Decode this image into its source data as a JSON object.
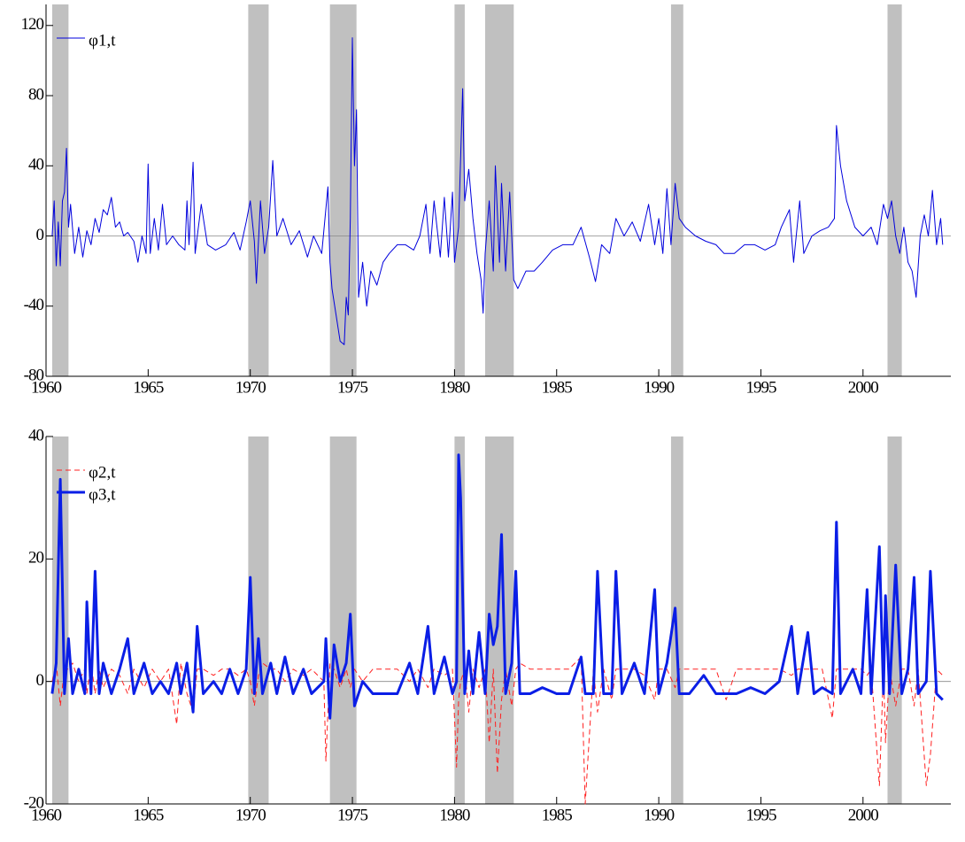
{
  "chart_data": [
    {
      "type": "line",
      "xlim": [
        1960,
        2004.3
      ],
      "xticks": [
        1960,
        1965,
        1970,
        1975,
        1980,
        1985,
        1990,
        1995,
        2000
      ],
      "ylim": [
        -80,
        132
      ],
      "yticks": [
        -80,
        -40,
        0,
        40,
        80,
        120
      ],
      "reference_line": 0,
      "legend": "top-left",
      "shaded_periods": [
        {
          "start": 1960.3,
          "end": 1961.1
        },
        {
          "start": 1969.9,
          "end": 1970.9
        },
        {
          "start": 1973.9,
          "end": 1975.2
        },
        {
          "start": 1980.0,
          "end": 1980.5
        },
        {
          "start": 1981.5,
          "end": 1982.9
        },
        {
          "start": 1990.6,
          "end": 1991.2
        },
        {
          "start": 2001.2,
          "end": 2001.9
        }
      ],
      "x": [
        1960.3,
        1960.4,
        1960.5,
        1960.6,
        1960.7,
        1960.8,
        1960.9,
        1961.0,
        1961.1,
        1961.2,
        1961.4,
        1961.6,
        1961.8,
        1962.0,
        1962.2,
        1962.4,
        1962.6,
        1962.8,
        1963.0,
        1963.2,
        1963.4,
        1963.6,
        1963.8,
        1964.0,
        1964.3,
        1964.5,
        1964.7,
        1964.9,
        1965.0,
        1965.1,
        1965.3,
        1965.5,
        1965.7,
        1965.9,
        1966.2,
        1966.5,
        1966.8,
        1966.9,
        1967.0,
        1967.2,
        1967.3,
        1967.6,
        1967.9,
        1968.3,
        1968.8,
        1969.2,
        1969.5,
        1969.8,
        1970.0,
        1970.2,
        1970.3,
        1970.5,
        1970.7,
        1970.9,
        1971.1,
        1971.3,
        1971.6,
        1972.0,
        1972.4,
        1972.8,
        1973.1,
        1973.5,
        1973.8,
        1973.9,
        1974.0,
        1974.2,
        1974.4,
        1974.6,
        1974.7,
        1974.8,
        1974.9,
        1975.0,
        1975.1,
        1975.2,
        1975.3,
        1975.5,
        1975.7,
        1975.9,
        1976.2,
        1976.5,
        1976.8,
        1977.2,
        1977.6,
        1978.0,
        1978.3,
        1978.6,
        1978.8,
        1979.0,
        1979.3,
        1979.5,
        1979.7,
        1979.9,
        1980.0,
        1980.2,
        1980.4,
        1980.5,
        1980.7,
        1980.9,
        1981.1,
        1981.3,
        1981.4,
        1981.5,
        1981.7,
        1981.9,
        1982.0,
        1982.2,
        1982.3,
        1982.5,
        1982.7,
        1982.9,
        1983.1,
        1983.5,
        1983.9,
        1984.3,
        1984.8,
        1985.3,
        1985.8,
        1986.2,
        1986.6,
        1986.9,
        1987.2,
        1987.6,
        1987.9,
        1988.3,
        1988.7,
        1989.1,
        1989.5,
        1989.8,
        1990.0,
        1990.2,
        1990.4,
        1990.6,
        1990.8,
        1991.0,
        1991.3,
        1991.8,
        1992.3,
        1992.8,
        1993.2,
        1993.7,
        1994.2,
        1994.7,
        1995.2,
        1995.7,
        1996.0,
        1996.4,
        1996.6,
        1996.9,
        1997.1,
        1997.5,
        1997.9,
        1998.3,
        1998.6,
        1998.7,
        1998.9,
        1999.2,
        1999.6,
        2000.0,
        2000.4,
        2000.7,
        2001.0,
        2001.2,
        2001.4,
        2001.6,
        2001.8,
        2002.0,
        2002.2,
        2002.4,
        2002.6,
        2002.8,
        2003.0,
        2003.2,
        2003.4,
        2003.6,
        2003.8,
        2003.9
      ],
      "series": [
        {
          "name": "φ1,t",
          "color": "#0000dd",
          "line_width": 1,
          "line_style": "solid",
          "values": [
            0,
            20,
            -17,
            8,
            -17,
            20,
            25,
            50,
            5,
            18,
            -10,
            5,
            -12,
            3,
            -5,
            10,
            2,
            15,
            12,
            22,
            5,
            8,
            0,
            2,
            -3,
            -15,
            0,
            -10,
            41,
            -10,
            10,
            -8,
            18,
            -5,
            0,
            -5,
            -8,
            20,
            -5,
            42,
            -10,
            18,
            -5,
            -8,
            -5,
            2,
            -8,
            8,
            20,
            -3,
            -27,
            20,
            -10,
            5,
            43,
            0,
            10,
            -5,
            3,
            -12,
            0,
            -10,
            28,
            -15,
            -30,
            -45,
            -60,
            -62,
            -35,
            -45,
            10,
            113,
            40,
            72,
            -35,
            -15,
            -40,
            -20,
            -28,
            -15,
            -10,
            -5,
            -5,
            -8,
            0,
            18,
            -10,
            20,
            -12,
            22,
            -12,
            25,
            -15,
            5,
            84,
            20,
            38,
            10,
            -10,
            -25,
            -44,
            -10,
            20,
            -20,
            40,
            -15,
            30,
            -20,
            25,
            -25,
            -30,
            -20,
            -20,
            -15,
            -8,
            -5,
            -5,
            5,
            -12,
            -26,
            -5,
            -10,
            10,
            0,
            8,
            -3,
            18,
            -5,
            10,
            -10,
            27,
            -5,
            30,
            10,
            5,
            0,
            -3,
            -5,
            -10,
            -10,
            -5,
            -5,
            -8,
            -5,
            5,
            15,
            -15,
            20,
            -10,
            0,
            3,
            5,
            10,
            63,
            40,
            20,
            5,
            0,
            5,
            -5,
            18,
            10,
            20,
            0,
            -10,
            5,
            -15,
            -20,
            -35,
            0,
            12,
            0,
            26,
            -5,
            10,
            -5
          ]
        }
      ]
    },
    {
      "type": "line",
      "xlim": [
        1960,
        2004.3
      ],
      "xticks": [
        1960,
        1965,
        1970,
        1975,
        1980,
        1985,
        1990,
        1995,
        2000
      ],
      "ylim": [
        -20,
        40
      ],
      "yticks": [
        -20,
        0,
        20,
        40
      ],
      "reference_line": 0,
      "legend": "top-left",
      "shaded_periods": [
        {
          "start": 1960.3,
          "end": 1961.1
        },
        {
          "start": 1969.9,
          "end": 1970.9
        },
        {
          "start": 1973.9,
          "end": 1975.2
        },
        {
          "start": 1980.0,
          "end": 1980.5
        },
        {
          "start": 1981.5,
          "end": 1982.9
        },
        {
          "start": 1990.6,
          "end": 1991.2
        },
        {
          "start": 2001.2,
          "end": 2001.9
        }
      ],
      "x": [
        1960.3,
        1960.5,
        1960.7,
        1960.9,
        1961.1,
        1961.3,
        1961.6,
        1961.9,
        1962.0,
        1962.2,
        1962.4,
        1962.6,
        1962.8,
        1963.2,
        1963.6,
        1964.0,
        1964.3,
        1964.8,
        1965.2,
        1965.6,
        1966.0,
        1966.4,
        1966.6,
        1966.9,
        1967.2,
        1967.4,
        1967.7,
        1968.2,
        1968.6,
        1969.0,
        1969.4,
        1969.8,
        1970.0,
        1970.2,
        1970.4,
        1970.6,
        1971.0,
        1971.3,
        1971.7,
        1972.1,
        1972.6,
        1973.0,
        1973.6,
        1973.7,
        1973.9,
        1974.1,
        1974.4,
        1974.7,
        1974.9,
        1975.1,
        1975.5,
        1976.0,
        1976.6,
        1977.2,
        1977.8,
        1978.2,
        1978.7,
        1979.0,
        1979.5,
        1979.9,
        1980.1,
        1980.2,
        1980.3,
        1980.5,
        1980.7,
        1980.9,
        1981.2,
        1981.5,
        1981.7,
        1981.9,
        1982.1,
        1982.3,
        1982.5,
        1982.8,
        1983.0,
        1983.2,
        1983.7,
        1984.3,
        1985.0,
        1985.6,
        1986.2,
        1986.4,
        1986.8,
        1987.0,
        1987.3,
        1987.7,
        1987.9,
        1988.2,
        1988.8,
        1989.3,
        1989.8,
        1990.0,
        1990.4,
        1990.8,
        1991.0,
        1991.5,
        1992.2,
        1992.8,
        1993.3,
        1993.8,
        1994.5,
        1995.2,
        1995.9,
        1996.5,
        1996.8,
        1997.3,
        1997.6,
        1998.0,
        1998.5,
        1998.7,
        1998.9,
        1999.5,
        1999.9,
        2000.2,
        2000.4,
        2000.8,
        2001.0,
        2001.1,
        2001.3,
        2001.6,
        2001.9,
        2002.2,
        2002.5,
        2002.7,
        2003.1,
        2003.3,
        2003.6,
        2003.9
      ],
      "series": [
        {
          "name": "φ2,t",
          "color": "#ff2020",
          "line_width": 1,
          "line_style": "dashed",
          "values": [
            0,
            3,
            -4,
            2,
            2,
            3,
            0,
            2,
            -2,
            3,
            -2,
            2,
            -1,
            2,
            1,
            -2,
            2,
            -1,
            2,
            0,
            2,
            -7,
            3,
            -2,
            -5,
            2,
            2,
            1,
            2,
            2,
            1,
            2,
            0,
            -4,
            1,
            3,
            2,
            2,
            0,
            2,
            1,
            2,
            0,
            -13,
            3,
            2,
            -1,
            2,
            -1,
            2,
            0,
            2,
            2,
            2,
            0,
            2,
            -1,
            2,
            1,
            2,
            -14,
            -3,
            0,
            2,
            -5,
            2,
            -1,
            2,
            -10,
            2,
            -15,
            -3,
            2,
            -4,
            2,
            3,
            2,
            2,
            2,
            2,
            4,
            -20,
            2,
            -5,
            2,
            -3,
            2,
            2,
            2,
            1,
            -3,
            2,
            2,
            -1,
            2,
            2,
            2,
            2,
            -3,
            2,
            2,
            2,
            2,
            1,
            2,
            2,
            2,
            2,
            -6,
            2,
            2,
            2,
            2,
            1,
            2,
            -17,
            2,
            -10,
            2,
            -4,
            2,
            2,
            -4,
            2,
            -17,
            -12,
            2,
            1
          ]
        },
        {
          "name": "φ3,t",
          "color": "#0a1ee6",
          "line_width": 3,
          "line_style": "solid",
          "values": [
            -2,
            3,
            33,
            -2,
            7,
            -2,
            2,
            -2,
            13,
            -2,
            18,
            -2,
            3,
            -2,
            2,
            7,
            -2,
            3,
            -2,
            0,
            -2,
            3,
            -2,
            3,
            -5,
            9,
            -2,
            0,
            -2,
            2,
            -2,
            2,
            17,
            -2,
            7,
            -2,
            3,
            -2,
            4,
            -2,
            2,
            -2,
            0,
            7,
            -6,
            6,
            0,
            3,
            11,
            -4,
            0,
            -2,
            -2,
            -2,
            3,
            -2,
            9,
            -2,
            4,
            -2,
            0,
            37,
            30,
            -2,
            5,
            -2,
            8,
            -2,
            11,
            6,
            9,
            24,
            -2,
            3,
            18,
            -2,
            -2,
            -1,
            -2,
            -2,
            4,
            -2,
            -2,
            18,
            -2,
            -2,
            18,
            -2,
            3,
            -2,
            15,
            -2,
            3,
            12,
            -2,
            -2,
            1,
            -2,
            -2,
            -2,
            -1,
            -2,
            0,
            9,
            -2,
            8,
            -2,
            -1,
            -2,
            26,
            -2,
            2,
            -2,
            15,
            -2,
            22,
            -2,
            14,
            -2,
            19,
            -2,
            2,
            17,
            -2,
            0,
            18,
            -2,
            -3
          ]
        }
      ]
    }
  ]
}
